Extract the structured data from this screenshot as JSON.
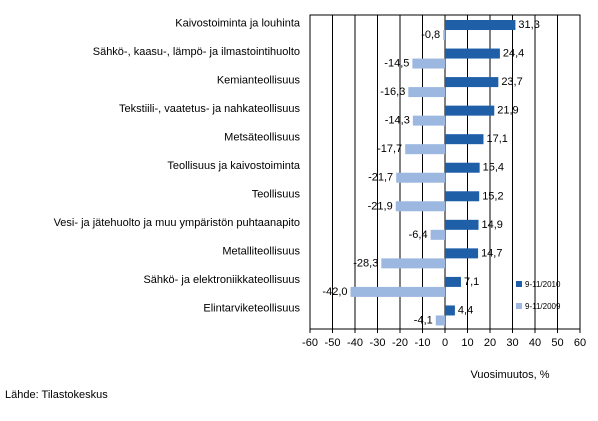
{
  "chart_data": {
    "type": "bar",
    "orientation": "horizontal",
    "categories": [
      "Kaivostoiminta ja louhinta",
      "Sähkö-, kaasu-, lämpö- ja ilmastointihuolto",
      "Kemianteollisuus",
      "Tekstiili-, vaatetus- ja nahkateollisuus",
      "Metsäteollisuus",
      "Teollisuus ja kaivostoiminta",
      "Teollisuus",
      "Vesi- ja jätehuolto ja muu ympäristön puhtaanapito",
      "Metalliteollisuus",
      "Sähkö- ja elektroniikkateollisuus",
      "Elintarviketeollisuus"
    ],
    "series": [
      {
        "name": "9-11/2010",
        "color": "#1f5fa8",
        "values": [
          31.3,
          24.4,
          23.7,
          21.9,
          17.1,
          15.4,
          15.2,
          14.9,
          14.7,
          7.1,
          4.4
        ],
        "labels": [
          "31,3",
          "24,4",
          "23,7",
          "21,9",
          "17,1",
          "15,4",
          "15,2",
          "14,9",
          "14,7",
          "7,1",
          "4,4"
        ]
      },
      {
        "name": "9-11/2009",
        "color": "#9db8e0",
        "values": [
          -0.8,
          -14.5,
          -16.3,
          -14.3,
          -17.7,
          -21.7,
          -21.9,
          -6.4,
          -28.3,
          -42.0,
          -4.1
        ],
        "labels": [
          "-0,8",
          "-14,5",
          "-16,3",
          "-14,3",
          "-17,7",
          "-21,7",
          "-21,9",
          "-6,4",
          "-28,3",
          "-42,0",
          "-4,1"
        ]
      }
    ],
    "xlabel": "Vuosimuutos, %",
    "xlim": [
      -60,
      60
    ],
    "xticks": [
      -60,
      -50,
      -40,
      -30,
      -20,
      -10,
      0,
      10,
      20,
      30,
      40,
      50,
      60
    ],
    "grid": true,
    "legend_position": "bottom-right"
  },
  "source": "Lähde: Tilastokeskus"
}
